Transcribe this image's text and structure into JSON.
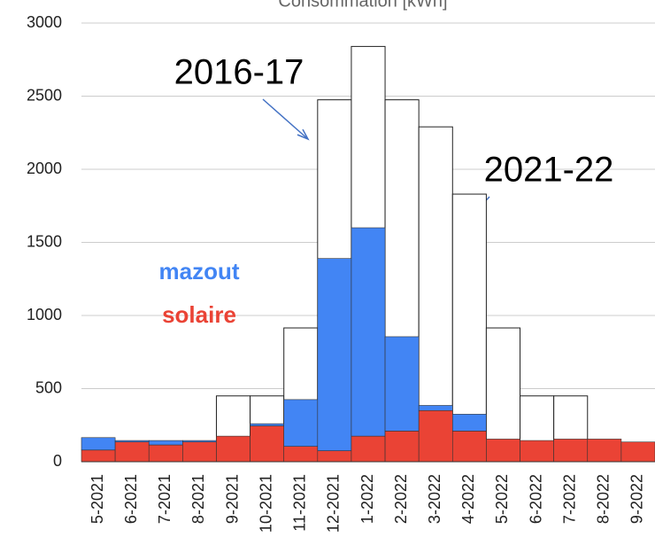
{
  "chart_data": {
    "type": "bar",
    "title": "Consommation [kWh]",
    "categories": [
      "5-2021",
      "6-2021",
      "7-2021",
      "8-2021",
      "9-2021",
      "10-2021",
      "11-2021",
      "12-2021",
      "1-2022",
      "2-2022",
      "3-2022",
      "4-2022",
      "5-2022",
      "6-2022",
      "7-2022",
      "8-2022",
      "9-2022"
    ],
    "series": [
      {
        "name": "solaire",
        "color": "#ea4335",
        "values": [
          80,
          135,
          115,
          135,
          175,
          245,
          105,
          75,
          175,
          210,
          350,
          210,
          155,
          145,
          155,
          155,
          135
        ]
      },
      {
        "name": "mazout",
        "color": "#4285f4",
        "values": [
          85,
          10,
          30,
          10,
          0,
          15,
          320,
          1315,
          1425,
          645,
          35,
          115,
          0,
          0,
          0,
          0,
          0
        ]
      },
      {
        "name": "2016-17",
        "color": "#ffffff",
        "values": [
          null,
          null,
          null,
          null,
          450,
          450,
          915,
          2475,
          2840,
          2475,
          2290,
          1830,
          915,
          450,
          450,
          null,
          null
        ]
      }
    ],
    "annotation": "2021-22",
    "ylim": [
      0,
      3000
    ],
    "yticks": [
      0,
      500,
      1000,
      1500,
      2000,
      2500,
      3000
    ],
    "grid": true
  }
}
